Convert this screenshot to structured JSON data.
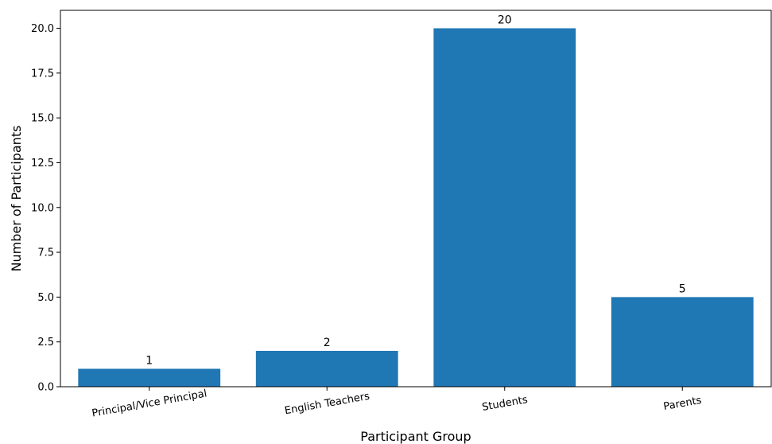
{
  "chart_data": {
    "type": "bar",
    "title": "",
    "xlabel": "Participant Group",
    "ylabel": "Number of Participants",
    "categories": [
      "Principal/Vice Principal",
      "English Teachers",
      "Students",
      "Parents"
    ],
    "values": [
      1,
      2,
      20,
      5
    ],
    "data_labels": [
      "1",
      "2",
      "20",
      "5"
    ],
    "ylim": [
      0,
      21
    ],
    "yticks": [
      0,
      2.5,
      5,
      7.5,
      10,
      12.5,
      15,
      17.5,
      20
    ],
    "ytick_labels": [
      "0.0",
      "2.5",
      "5.0",
      "7.5",
      "10.0",
      "12.5",
      "15.0",
      "17.5",
      "20.0"
    ],
    "xtick_rotation_deg": 10,
    "bar_color": "#1f77b4",
    "grid": false,
    "legend": "none"
  }
}
